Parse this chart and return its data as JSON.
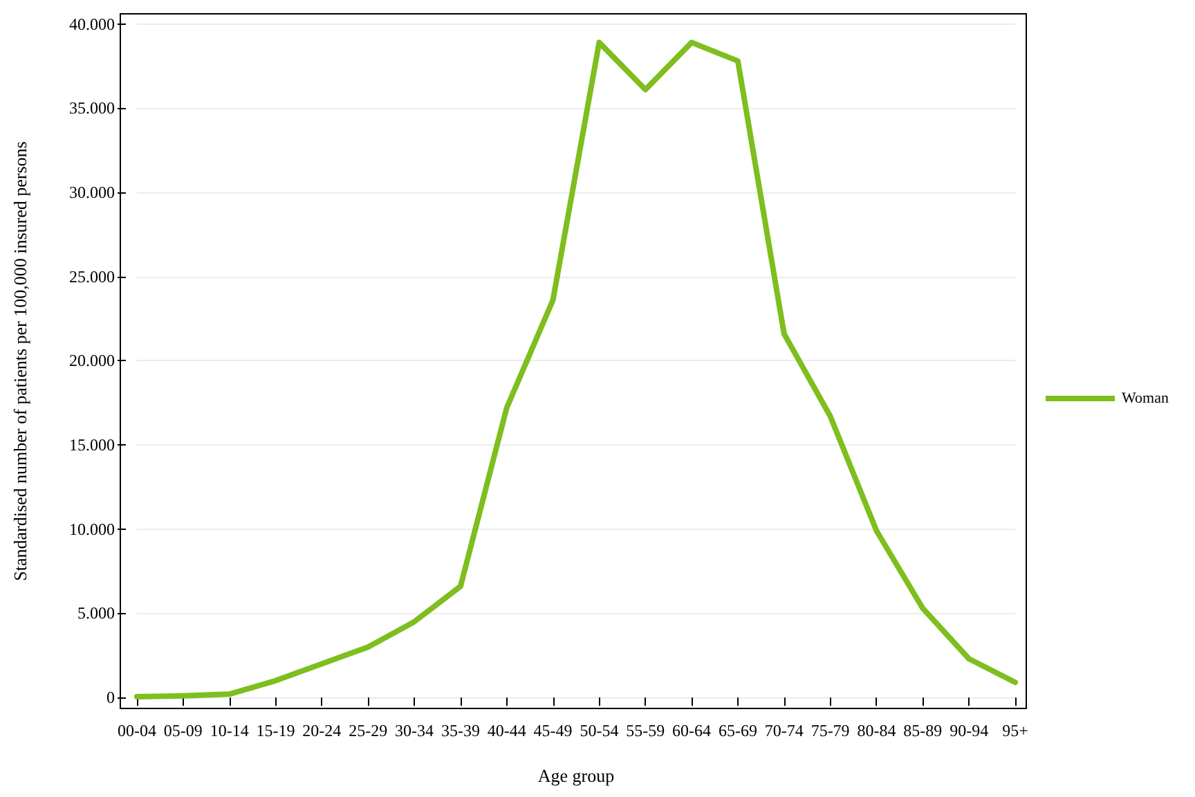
{
  "chart_data": {
    "type": "line",
    "xlabel": "Age group",
    "ylabel": "Standardised number of patients per 100,000 insured persons",
    "categories": [
      "00-04",
      "05-09",
      "10-14",
      "15-19",
      "20-24",
      "25-29",
      "30-34",
      "35-39",
      "40-44",
      "45-49",
      "50-54",
      "55-59",
      "60-64",
      "65-69",
      "70-74",
      "75-79",
      "80-84",
      "85-89",
      "90-94",
      "95+"
    ],
    "series": [
      {
        "name": "Woman",
        "color": "#7ebe1e",
        "values": [
          50,
          100,
          200,
          1000,
          2000,
          3000,
          4500,
          6600,
          17200,
          23600,
          38900,
          36100,
          38900,
          37800,
          21600,
          16700,
          9900,
          5300,
          2300,
          900
        ]
      }
    ],
    "ylim": [
      -650,
      40600
    ],
    "yticks": [
      0,
      {
        "value": 5000,
        "label": "5.000"
      },
      {
        "value": 10000,
        "label": "10.000"
      },
      {
        "value": 15000,
        "label": "15.000"
      },
      {
        "value": 20000,
        "label": "20.000"
      },
      {
        "value": 25000,
        "label": "25.000"
      },
      {
        "value": 30000,
        "label": "30.000"
      },
      {
        "value": 35000,
        "label": "35.000"
      },
      {
        "value": 40000,
        "label": "40.000"
      }
    ],
    "grid": "y",
    "legend": "right",
    "marker": "none",
    "line_style": "solid"
  }
}
